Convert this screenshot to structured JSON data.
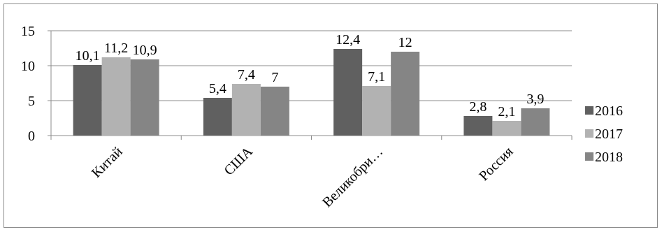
{
  "chart_data": {
    "type": "bar",
    "categories": [
      "Китай",
      "США",
      "Великобри…",
      "Россия"
    ],
    "series": [
      {
        "name": "2016",
        "values": [
          10.1,
          5.4,
          12.4,
          2.8
        ],
        "labels": [
          "10,1",
          "5,4",
          "12,4",
          "2,8"
        ],
        "color": "#606060"
      },
      {
        "name": "2017",
        "values": [
          11.2,
          7.4,
          7.1,
          2.1
        ],
        "labels": [
          "11,2",
          "7,4",
          "7,1",
          "2,1"
        ],
        "color": "#b2b2b2"
      },
      {
        "name": "2018",
        "values": [
          10.9,
          7,
          12,
          3.9
        ],
        "labels": [
          "10,9",
          "7",
          "12",
          "3,9"
        ],
        "color": "#858585"
      }
    ],
    "yticks": [
      0,
      5,
      10,
      15
    ],
    "ylim": [
      0,
      15
    ],
    "grid": true,
    "legend": "right",
    "title": "",
    "xlabel": "",
    "ylabel": ""
  }
}
